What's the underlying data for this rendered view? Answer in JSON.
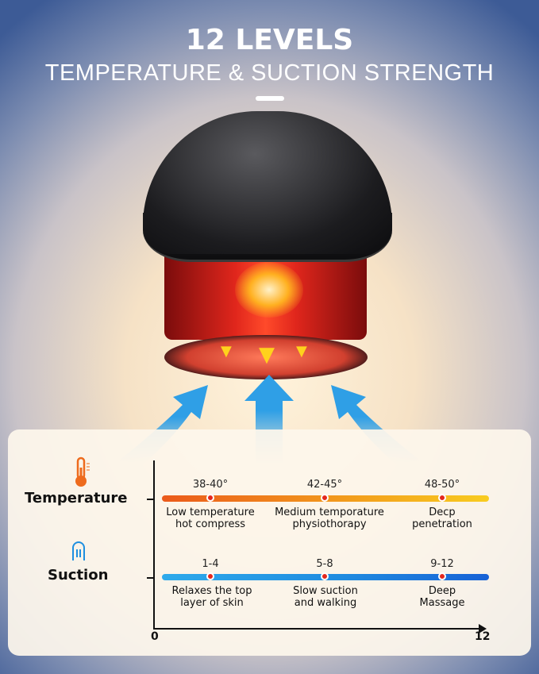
{
  "header": {
    "title": "12 LEVELS",
    "subtitle": "TEMPERATURE & SUCTION STRENGTH"
  },
  "colors": {
    "temperature_start": "#eb5a1b",
    "temperature_end": "#f8cc20",
    "suction_start": "#2eaaeb",
    "suction_end": "#1762d6",
    "marker": "#e4271d",
    "arrow": "#2f9fe6"
  },
  "rows": [
    {
      "label": "Temperature",
      "icon": "thermometer-icon",
      "levels": [
        {
          "range": "38-40°",
          "description_1": "Low temperature",
          "description_2": "hot compress"
        },
        {
          "range": "42-45°",
          "description_1": "Medium temporature",
          "description_2": "physiothorapy"
        },
        {
          "range": "48-50°",
          "description_1": "Decp",
          "description_2": "penetration"
        }
      ]
    },
    {
      "label": "Suction",
      "icon": "suction-icon",
      "levels": [
        {
          "range": "1-4",
          "description_1": "Relaxes the top",
          "description_2": "layer of skin"
        },
        {
          "range": "5-8",
          "description_1": "Slow suction",
          "description_2": "and walking"
        },
        {
          "range": "9-12",
          "description_1": "Deep",
          "description_2": "Massage"
        }
      ]
    }
  ],
  "axis": {
    "min": "0",
    "max": "12"
  }
}
